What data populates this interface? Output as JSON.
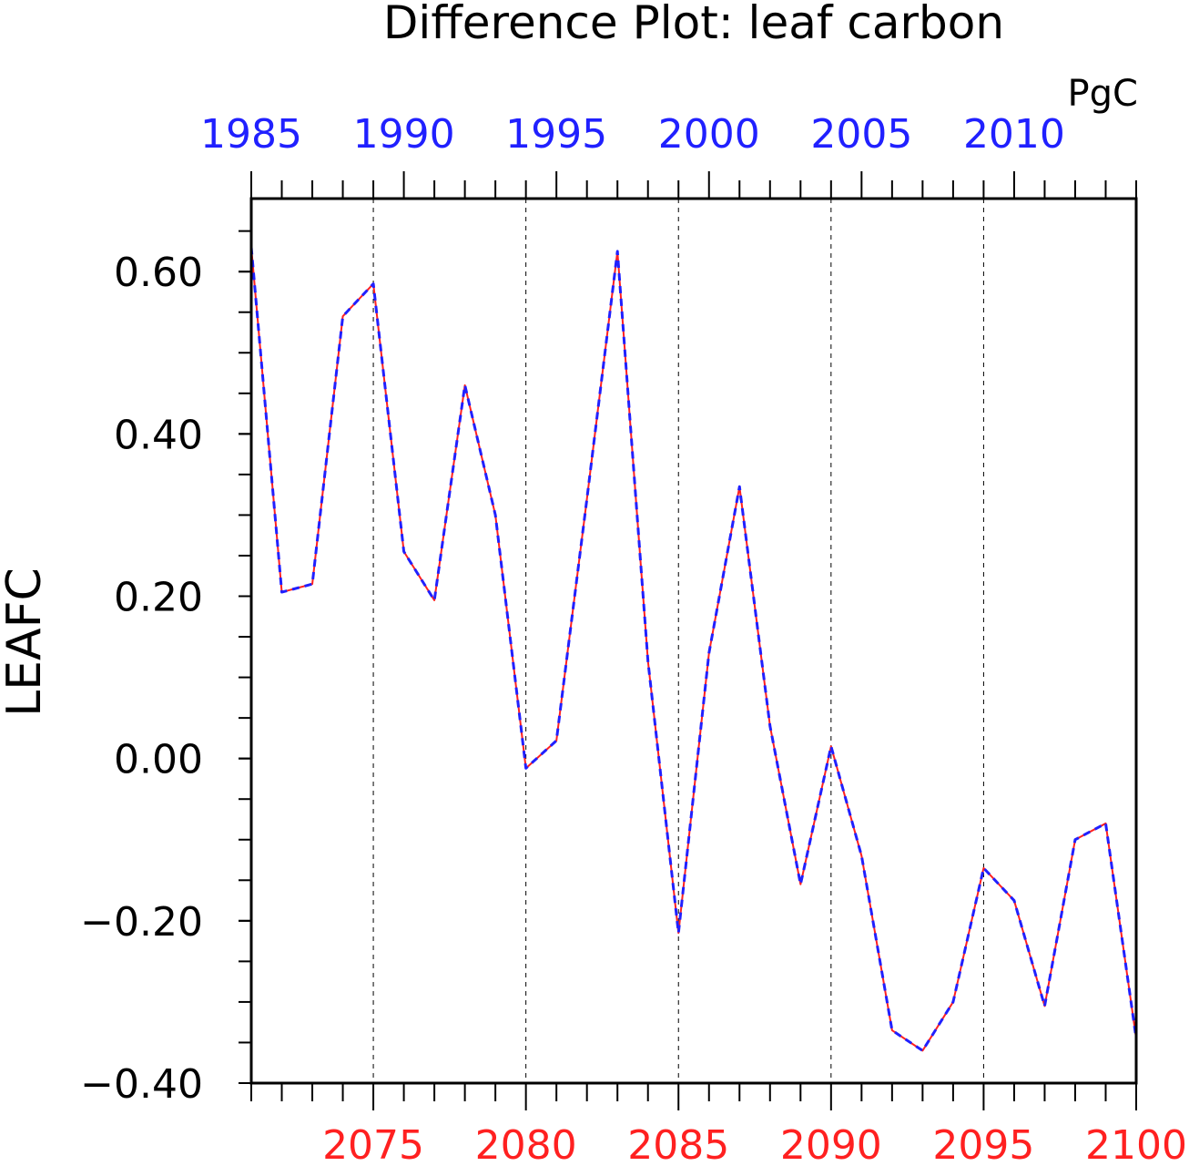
{
  "chart_data": {
    "type": "line",
    "title": "Difference Plot: leaf carbon",
    "units": "PgC",
    "ylabel": "LEAFC",
    "ylim": [
      -0.4,
      0.69
    ],
    "yticks": [
      {
        "value": 0.6,
        "label": "0.60"
      },
      {
        "value": 0.4,
        "label": "0.40"
      },
      {
        "value": 0.2,
        "label": "0.20"
      },
      {
        "value": 0.0,
        "label": "0.00"
      },
      {
        "value": -0.2,
        "label": "−0.20"
      },
      {
        "value": -0.4,
        "label": "−0.40"
      }
    ],
    "bottom_axis": {
      "color": "#ff2020",
      "xlim": [
        2071,
        2100
      ],
      "ticks": [
        "2075",
        "2080",
        "2085",
        "2090",
        "2095",
        "2100"
      ]
    },
    "top_axis": {
      "color": "#2020ff",
      "xlim": [
        1985,
        2014
      ],
      "ticks": [
        "1985",
        "1990",
        "1995",
        "2000",
        "2005",
        "2010"
      ]
    },
    "grid": "vertical dashed at major bottom ticks",
    "series": [
      {
        "color": "#ff2020",
        "dash": "solid",
        "values": [
          0.63,
          0.205,
          0.215,
          0.545,
          0.585,
          0.255,
          0.195,
          0.46,
          0.3,
          -0.012,
          0.022,
          0.32,
          0.625,
          0.12,
          -0.215,
          0.13,
          0.335,
          0.04,
          -0.155,
          0.015,
          -0.12,
          -0.335,
          -0.36,
          -0.3,
          -0.135,
          -0.175,
          -0.305,
          -0.1,
          -0.08,
          -0.345
        ]
      },
      {
        "color": "#2020ff",
        "dash": "dashed",
        "values": [
          0.63,
          0.205,
          0.215,
          0.545,
          0.585,
          0.255,
          0.195,
          0.46,
          0.3,
          -0.012,
          0.022,
          0.32,
          0.625,
          0.12,
          -0.215,
          0.13,
          0.335,
          0.04,
          -0.155,
          0.015,
          -0.12,
          -0.335,
          -0.36,
          -0.3,
          -0.135,
          -0.175,
          -0.305,
          -0.1,
          -0.08,
          -0.345
        ]
      }
    ]
  }
}
